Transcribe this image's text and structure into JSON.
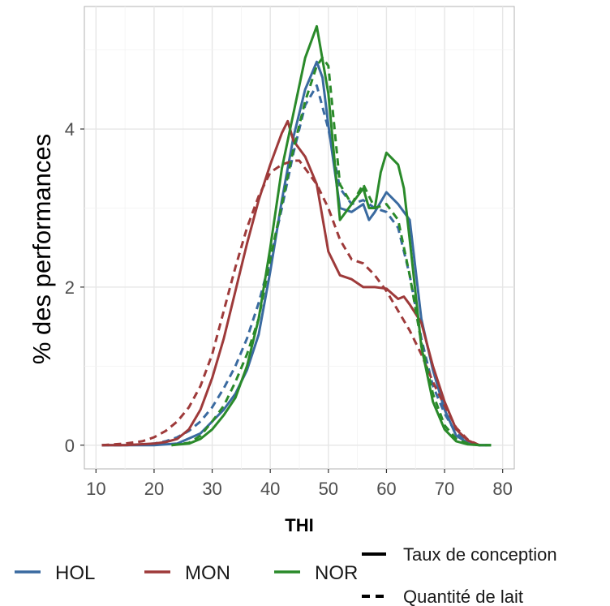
{
  "chart_data": {
    "type": "line",
    "xlabel": "THI",
    "ylabel": "% des performances",
    "xlim": [
      8,
      82
    ],
    "ylim": [
      -0.3,
      5.55
    ],
    "x_ticks": [
      10,
      20,
      30,
      40,
      50,
      60,
      70,
      80
    ],
    "y_ticks": [
      0,
      2,
      4
    ],
    "grid": true,
    "legend_placement": "bottom",
    "breed_legend": [
      {
        "name": "HOL",
        "color": "#3a6aa0"
      },
      {
        "name": "MON",
        "color": "#9e3a3a"
      },
      {
        "name": "NOR",
        "color": "#2a8a2a"
      }
    ],
    "linetype_legend": [
      {
        "name": "Taux de conception",
        "dash": "solid"
      },
      {
        "name": "Quantité de lait",
        "dash": "dashed"
      }
    ],
    "series": [
      {
        "breed": "HOL",
        "measure": "Taux de conception",
        "color": "#3a6aa0",
        "dash": "solid",
        "x": [
          11,
          15,
          20,
          24,
          28,
          32,
          34,
          36,
          38,
          40,
          42,
          44,
          46,
          48,
          49,
          50,
          52,
          54,
          56,
          57,
          58,
          60,
          62,
          64,
          66,
          68,
          70,
          72,
          74,
          76,
          78
        ],
        "y": [
          0,
          0,
          0,
          0.02,
          0.15,
          0.45,
          0.65,
          0.95,
          1.4,
          2.2,
          3.1,
          3.9,
          4.5,
          4.85,
          4.65,
          4.05,
          3.0,
          2.95,
          3.05,
          2.85,
          2.95,
          3.2,
          3.05,
          2.85,
          1.6,
          0.95,
          0.45,
          0.12,
          0.03,
          0,
          0
        ]
      },
      {
        "breed": "HOL",
        "measure": "Quantité de lait",
        "color": "#3a6aa0",
        "dash": "dashed",
        "x": [
          11,
          15,
          20,
          22,
          24,
          26,
          28,
          30,
          32,
          34,
          36,
          38,
          40,
          42,
          44,
          46,
          48,
          50,
          52,
          54,
          56,
          58,
          60,
          62,
          64,
          66,
          68,
          70,
          72,
          74,
          76,
          78
        ],
        "y": [
          0,
          0,
          0.02,
          0.05,
          0.1,
          0.18,
          0.3,
          0.48,
          0.72,
          1.0,
          1.35,
          1.8,
          2.35,
          3.0,
          3.7,
          4.3,
          4.55,
          4.0,
          3.25,
          3.05,
          3.1,
          3.0,
          2.95,
          2.75,
          2.15,
          1.35,
          0.75,
          0.4,
          0.15,
          0.05,
          0,
          0
        ]
      },
      {
        "breed": "MON",
        "measure": "Taux de conception",
        "color": "#9e3a3a",
        "dash": "solid",
        "x": [
          11,
          15,
          20,
          22,
          24,
          26,
          28,
          30,
          32,
          34,
          36,
          38,
          40,
          42,
          43,
          44,
          46,
          48,
          50,
          52,
          54,
          56,
          58,
          60,
          62,
          63,
          64,
          66,
          68,
          70,
          72,
          74,
          76
        ],
        "y": [
          0,
          0,
          0.02,
          0.04,
          0.08,
          0.2,
          0.45,
          0.85,
          1.35,
          1.95,
          2.55,
          3.1,
          3.55,
          3.95,
          4.1,
          3.85,
          3.65,
          3.3,
          2.45,
          2.15,
          2.1,
          2.0,
          2.0,
          1.98,
          1.85,
          1.88,
          1.78,
          1.55,
          1.0,
          0.55,
          0.2,
          0.06,
          0
        ]
      },
      {
        "breed": "MON",
        "measure": "Quantité de lait",
        "color": "#9e3a3a",
        "dash": "dashed",
        "x": [
          11,
          15,
          18,
          20,
          22,
          24,
          26,
          28,
          30,
          32,
          34,
          36,
          38,
          40,
          42,
          44,
          45,
          46,
          48,
          50,
          52,
          54,
          56,
          58,
          60,
          62,
          64,
          66,
          68,
          70,
          72,
          74,
          76
        ],
        "y": [
          0,
          0.02,
          0.05,
          0.1,
          0.18,
          0.3,
          0.48,
          0.75,
          1.15,
          1.7,
          2.25,
          2.75,
          3.15,
          3.45,
          3.55,
          3.6,
          3.6,
          3.5,
          3.3,
          3.0,
          2.6,
          2.35,
          2.3,
          2.15,
          1.95,
          1.7,
          1.45,
          1.15,
          0.8,
          0.5,
          0.22,
          0.07,
          0
        ]
      },
      {
        "breed": "NOR",
        "measure": "Taux de conception",
        "color": "#2a8a2a",
        "dash": "solid",
        "x": [
          23,
          26,
          28,
          30,
          32,
          34,
          36,
          38,
          40,
          42,
          44,
          46,
          48,
          50,
          52,
          54,
          56,
          57,
          58,
          59,
          60,
          62,
          63,
          64,
          66,
          68,
          70,
          72,
          74,
          76,
          78
        ],
        "y": [
          0,
          0.02,
          0.08,
          0.2,
          0.38,
          0.6,
          1.0,
          1.6,
          2.5,
          3.5,
          4.2,
          4.9,
          5.3,
          4.45,
          2.85,
          3.05,
          3.25,
          3.0,
          3.0,
          3.45,
          3.7,
          3.55,
          3.25,
          2.6,
          1.25,
          0.55,
          0.2,
          0.05,
          0.01,
          0,
          0
        ]
      },
      {
        "breed": "NOR",
        "measure": "Quantité de lait",
        "color": "#2a8a2a",
        "dash": "dashed",
        "x": [
          23,
          26,
          28,
          30,
          32,
          34,
          36,
          38,
          40,
          42,
          44,
          46,
          48,
          49,
          50,
          52,
          54,
          56,
          58,
          60,
          62,
          64,
          66,
          68,
          70,
          72,
          74,
          76,
          78
        ],
        "y": [
          0,
          0.03,
          0.12,
          0.3,
          0.5,
          0.8,
          1.15,
          1.6,
          2.35,
          3.05,
          3.75,
          4.35,
          4.8,
          4.9,
          4.8,
          3.3,
          3.05,
          3.3,
          3.0,
          3.05,
          2.85,
          2.15,
          1.3,
          0.65,
          0.25,
          0.08,
          0.02,
          0,
          0
        ]
      }
    ]
  }
}
